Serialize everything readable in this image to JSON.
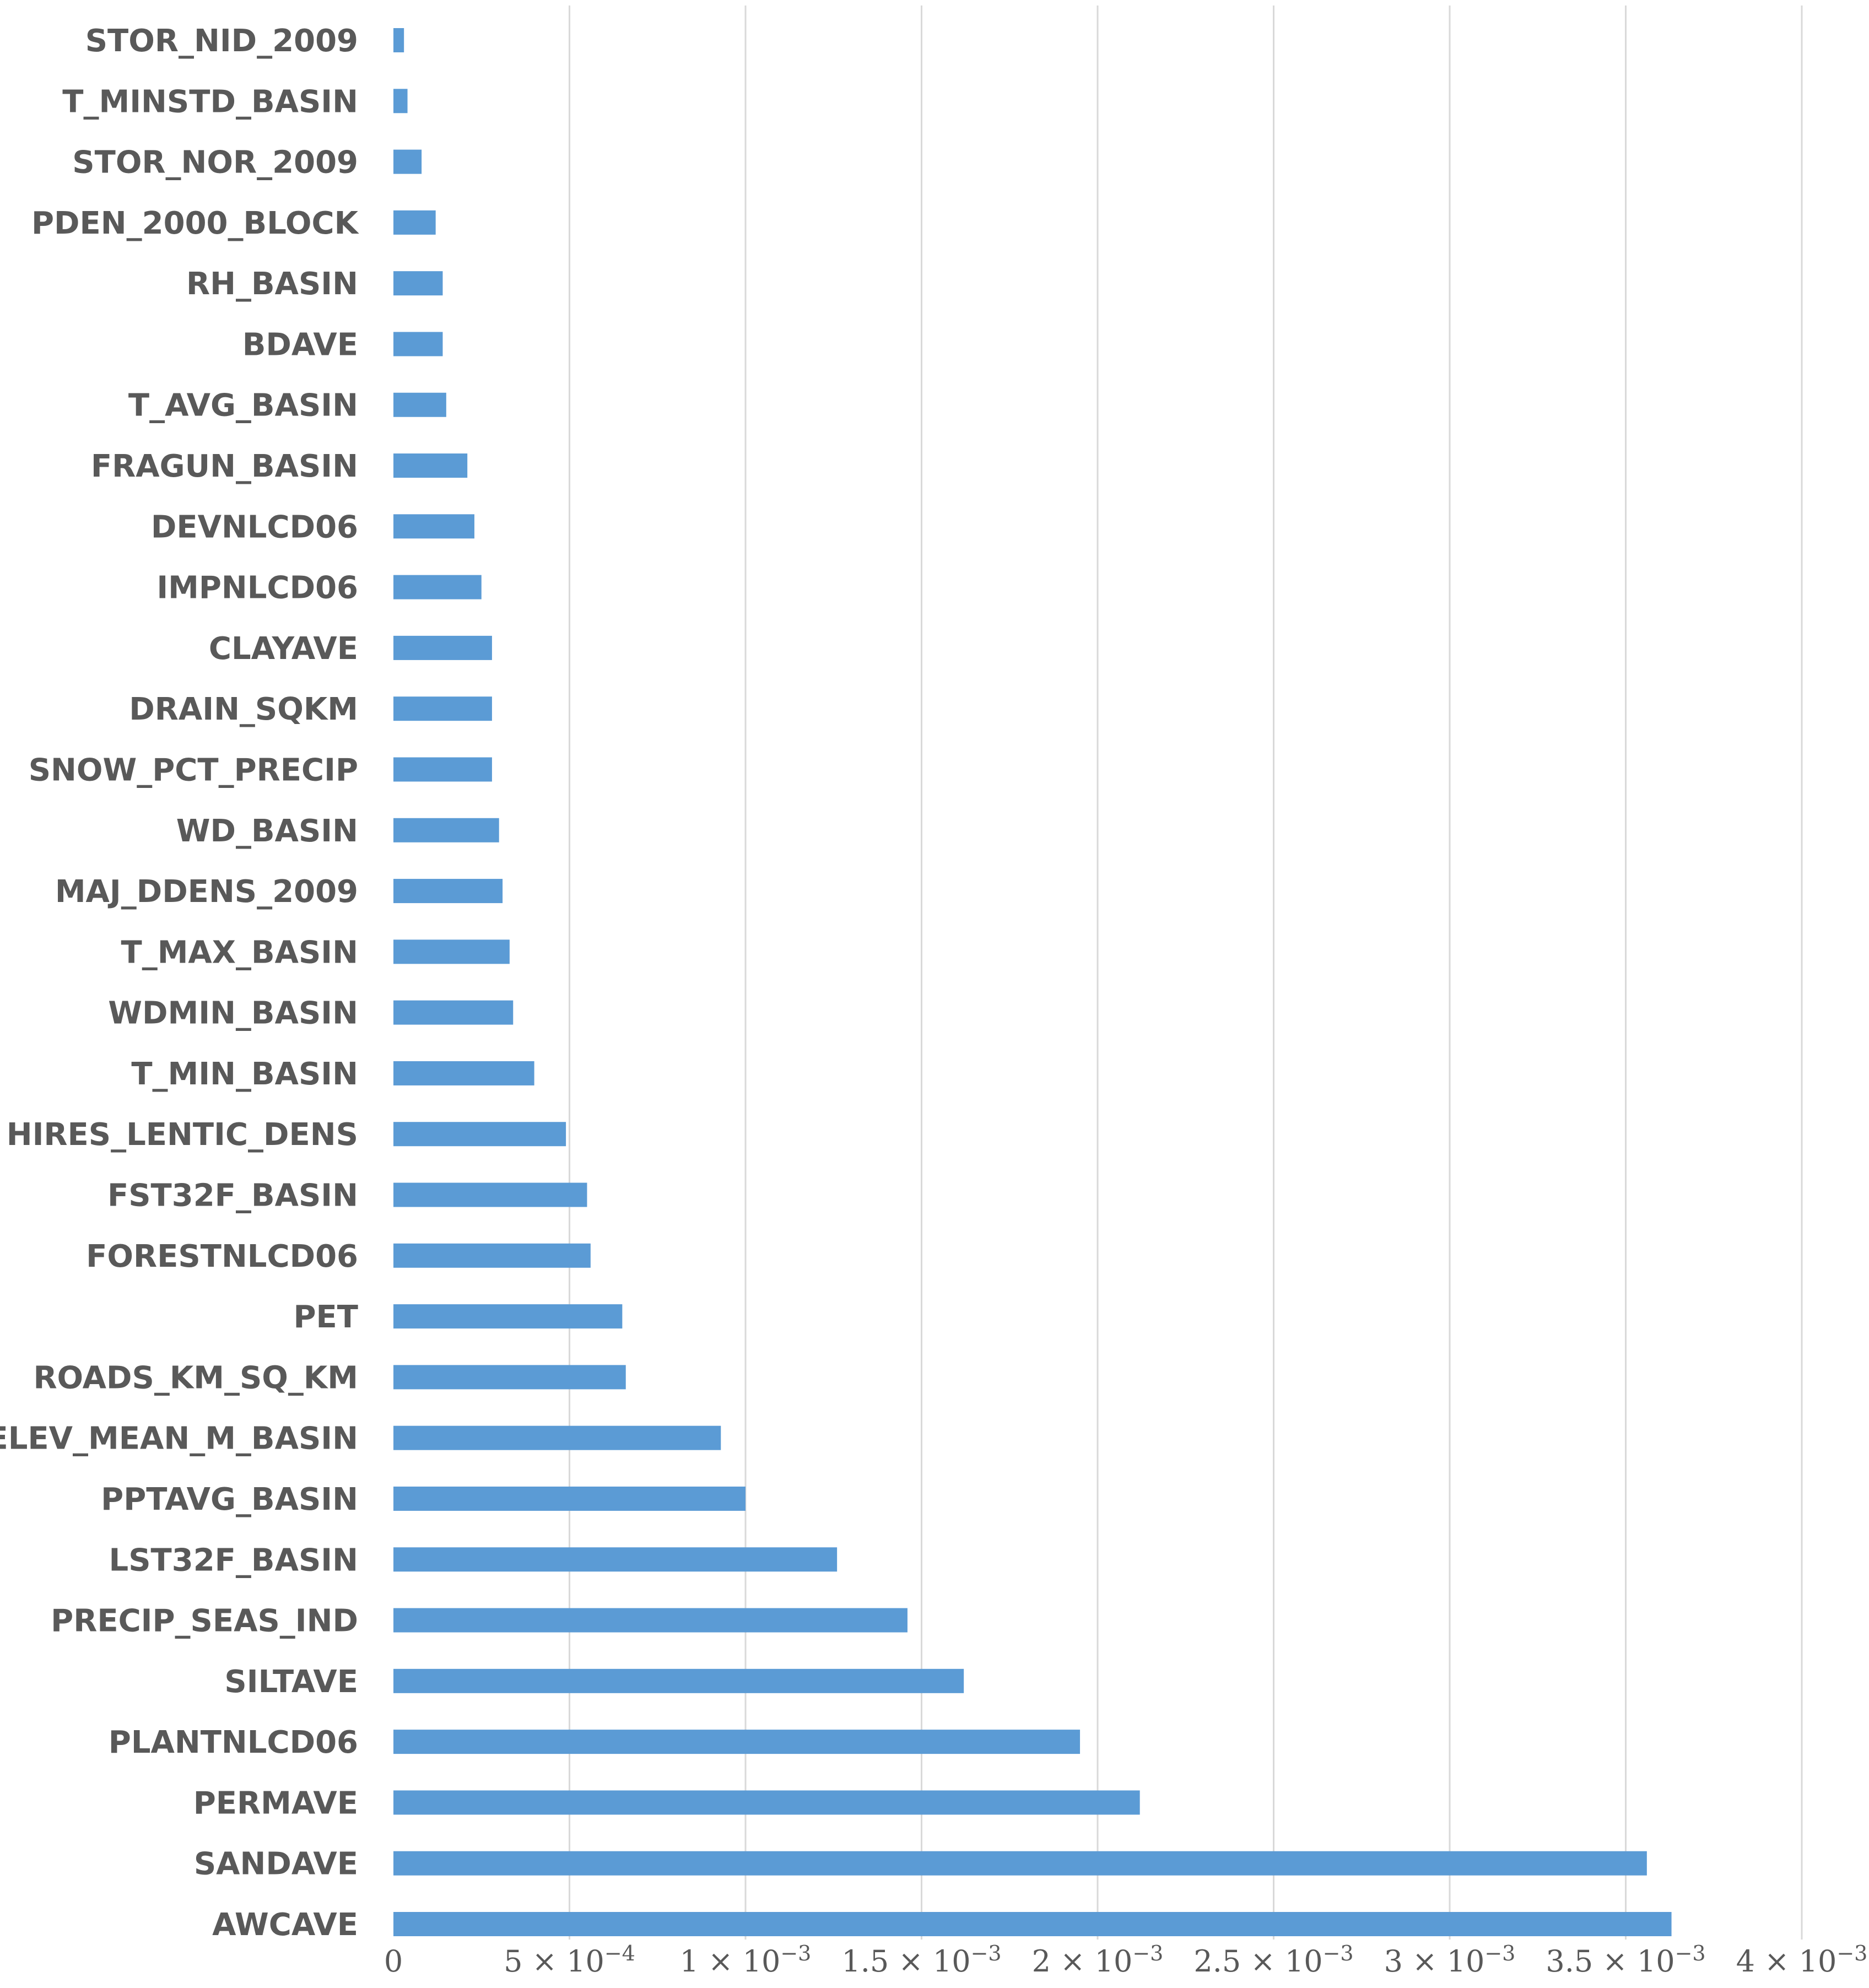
{
  "chart_data": {
    "type": "bar",
    "orientation": "horizontal",
    "color": "#5b9bd5",
    "grid": true,
    "xlim": [
      0,
      0.004
    ],
    "categories": [
      "STOR_NID_2009",
      "T_MINSTD_BASIN",
      "STOR_NOR_2009",
      "PDEN_2000_BLOCK",
      "RH_BASIN",
      "BDAVE",
      "T_AVG_BASIN",
      "FRAGUN_BASIN",
      "DEVNLCD06",
      "IMPNLCD06",
      "CLAYAVE",
      "DRAIN_SQKM",
      "SNOW_PCT_PRECIP",
      "WD_BASIN",
      "MAJ_DDENS_2009",
      "T_MAX_BASIN",
      "WDMIN_BASIN",
      "T_MIN_BASIN",
      "HIRES_LENTIC_DENS",
      "FST32F_BASIN",
      "FORESTNLCD06",
      "PET",
      "ROADS_KM_SQ_KM",
      "ELEV_MEAN_M_BASIN",
      "PPTAVG_BASIN",
      "LST32F_BASIN",
      "PRECIP_SEAS_IND",
      "SILTAVE",
      "PLANTNLCD06",
      "PERMAVE",
      "SANDAVE",
      "AWCAVE"
    ],
    "values": [
      3e-05,
      4e-05,
      8e-05,
      0.00012,
      0.00014,
      0.00014,
      0.00015,
      0.00021,
      0.00023,
      0.00025,
      0.00028,
      0.00028,
      0.00028,
      0.0003,
      0.00031,
      0.00033,
      0.00034,
      0.0004,
      0.00049,
      0.00055,
      0.00056,
      0.00065,
      0.00066,
      0.00093,
      0.001,
      0.00126,
      0.00146,
      0.00162,
      0.00195,
      0.00212,
      0.00356,
      0.00363
    ],
    "x_ticks": [
      {
        "value": 0,
        "mantissa": "0",
        "exp": ""
      },
      {
        "value": 0.0005,
        "mantissa": "5 × 10",
        "exp": "−4"
      },
      {
        "value": 0.001,
        "mantissa": "1 × 10",
        "exp": "−3"
      },
      {
        "value": 0.0015,
        "mantissa": "1.5 × 10",
        "exp": "−3"
      },
      {
        "value": 0.002,
        "mantissa": "2 × 10",
        "exp": "−3"
      },
      {
        "value": 0.0025,
        "mantissa": "2.5 × 10",
        "exp": "−3"
      },
      {
        "value": 0.003,
        "mantissa": "3 × 10",
        "exp": "−3"
      },
      {
        "value": 0.0035,
        "mantissa": "3.5 × 10",
        "exp": "−3"
      },
      {
        "value": 0.004,
        "mantissa": "4 × 10",
        "exp": "−3"
      }
    ]
  }
}
